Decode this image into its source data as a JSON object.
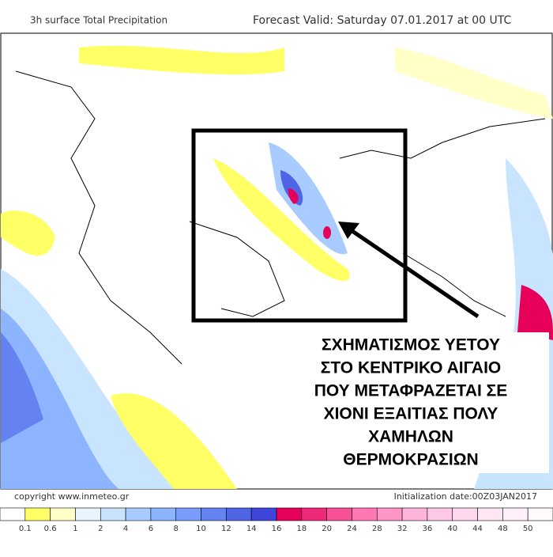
{
  "header": {
    "title": "3h surface Total Precipitation",
    "forecast": "Forecast Valid:  Saturday 07.01.2017 at 00 UTC"
  },
  "annotation": {
    "lines": [
      "ΣΧΗΜΑΤΙΣΜΟΣ ΥΕΤΟΥ",
      "ΣΤΟ ΚΕΝΤΡΙΚΟ ΑΙΓΑΙΟ",
      "ΠΟΥ ΜΕΤΑΦΡΑΖΕΤΑΙ ΣΕ",
      "ΧΙΟΝΙ ΕΞΑΙΤΙΑΣ ΠΟΛΥ",
      "ΧΑΜΗΛΩΝ",
      "ΘΕΡΜΟΚΡΑΣΙΩΝ"
    ]
  },
  "footer": {
    "copyright": "copyright www.inmeteo.gr",
    "initialization": "Initialization date:00Z03JAN2017"
  },
  "legend": {
    "labels": [
      "0.1",
      "0.6",
      "1",
      "2",
      "4",
      "6",
      "8",
      "10",
      "12",
      "14",
      "16",
      "18",
      "20",
      "24",
      "28",
      "32",
      "36",
      "40",
      "44",
      "48",
      "50"
    ],
    "colors": [
      "#ffffff",
      "#ffff66",
      "#ffffc8",
      "#e8f4ff",
      "#c8e4ff",
      "#a8ccff",
      "#8cb4ff",
      "#7a9cff",
      "#6482f0",
      "#5064e6",
      "#4046dc",
      "#e6005a",
      "#f0287a",
      "#f85096",
      "#ff78b4",
      "#ff96c8",
      "#ffb4dc",
      "#ffc8e6",
      "#ffd8ee",
      "#ffe6f4",
      "#fff0fa",
      "#fff8fc"
    ]
  }
}
